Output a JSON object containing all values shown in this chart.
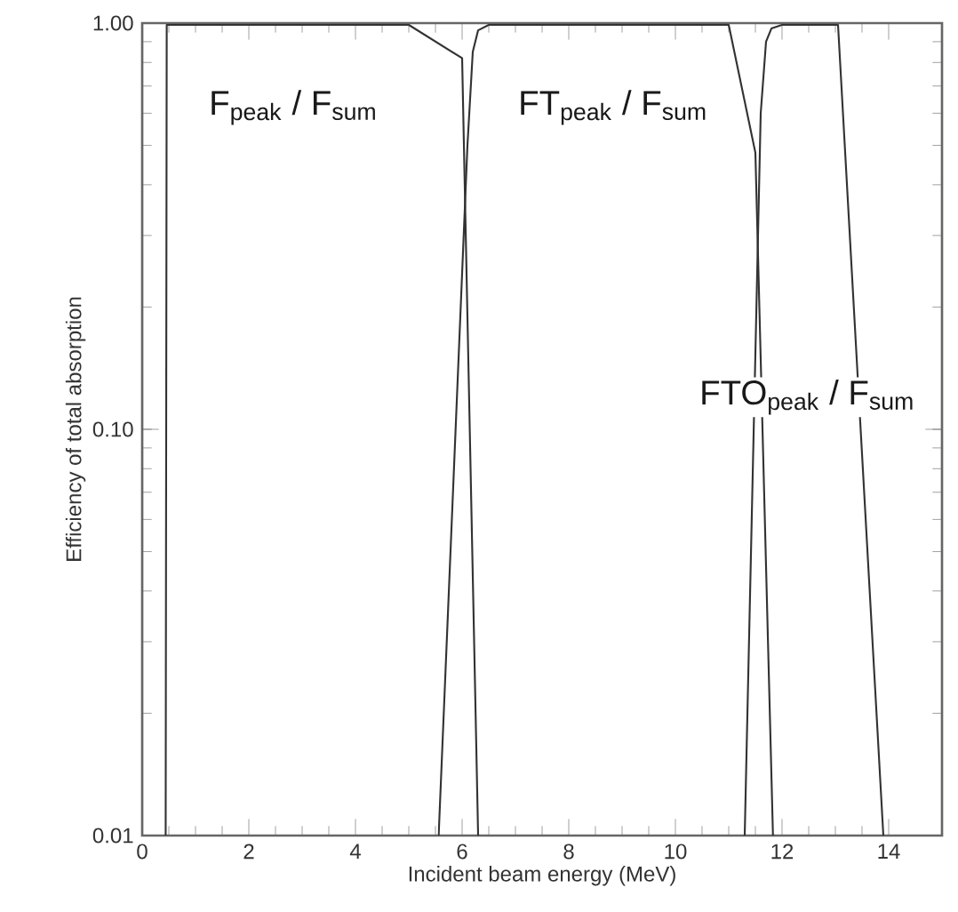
{
  "chart_data": {
    "type": "line",
    "xlabel": "Incident beam energy (MeV)",
    "ylabel": "Efficiency of total absorption",
    "log": "y",
    "xlim": [
      0,
      15
    ],
    "ylim": [
      0.01,
      1
    ],
    "xticks": [
      0,
      2,
      4,
      6,
      8,
      10,
      12,
      14
    ],
    "yticks": [
      {
        "value": 0.01,
        "label": "0.01"
      },
      {
        "value": 0.1,
        "label": "0.10"
      },
      {
        "value": 1,
        "label": "1.00"
      }
    ],
    "grid": false,
    "marker": "none",
    "line_style": "solid",
    "series": [
      {
        "name": "F$_{peak}$ / F$_{sum}$",
        "color": "#333333",
        "x": [
          0.44,
          0.46,
          0.6,
          2,
          4,
          5.0,
          6.0,
          6.3
        ],
        "values": [
          0.01,
          0.99,
          0.99,
          0.99,
          0.99,
          0.99,
          0.82,
          0.01
        ]
      },
      {
        "name": "FT$_{peak}$ / F$_{sum}$",
        "color": "#333333",
        "x": [
          5.56,
          6.1,
          6.2,
          6.3,
          6.5,
          8,
          10,
          11.0,
          11.5,
          11.83
        ],
        "values": [
          0.01,
          0.5,
          0.85,
          0.96,
          0.99,
          0.99,
          0.99,
          0.99,
          0.48,
          0.01
        ]
      },
      {
        "name": "FTO$_{peak}$ / F$_{sum}$",
        "color": "#333333",
        "x": [
          11.3,
          11.6,
          11.7,
          11.8,
          12.0,
          13.05,
          13.9
        ],
        "values": [
          0.01,
          0.6,
          0.9,
          0.97,
          0.99,
          0.99,
          0.01
        ]
      }
    ]
  }
}
